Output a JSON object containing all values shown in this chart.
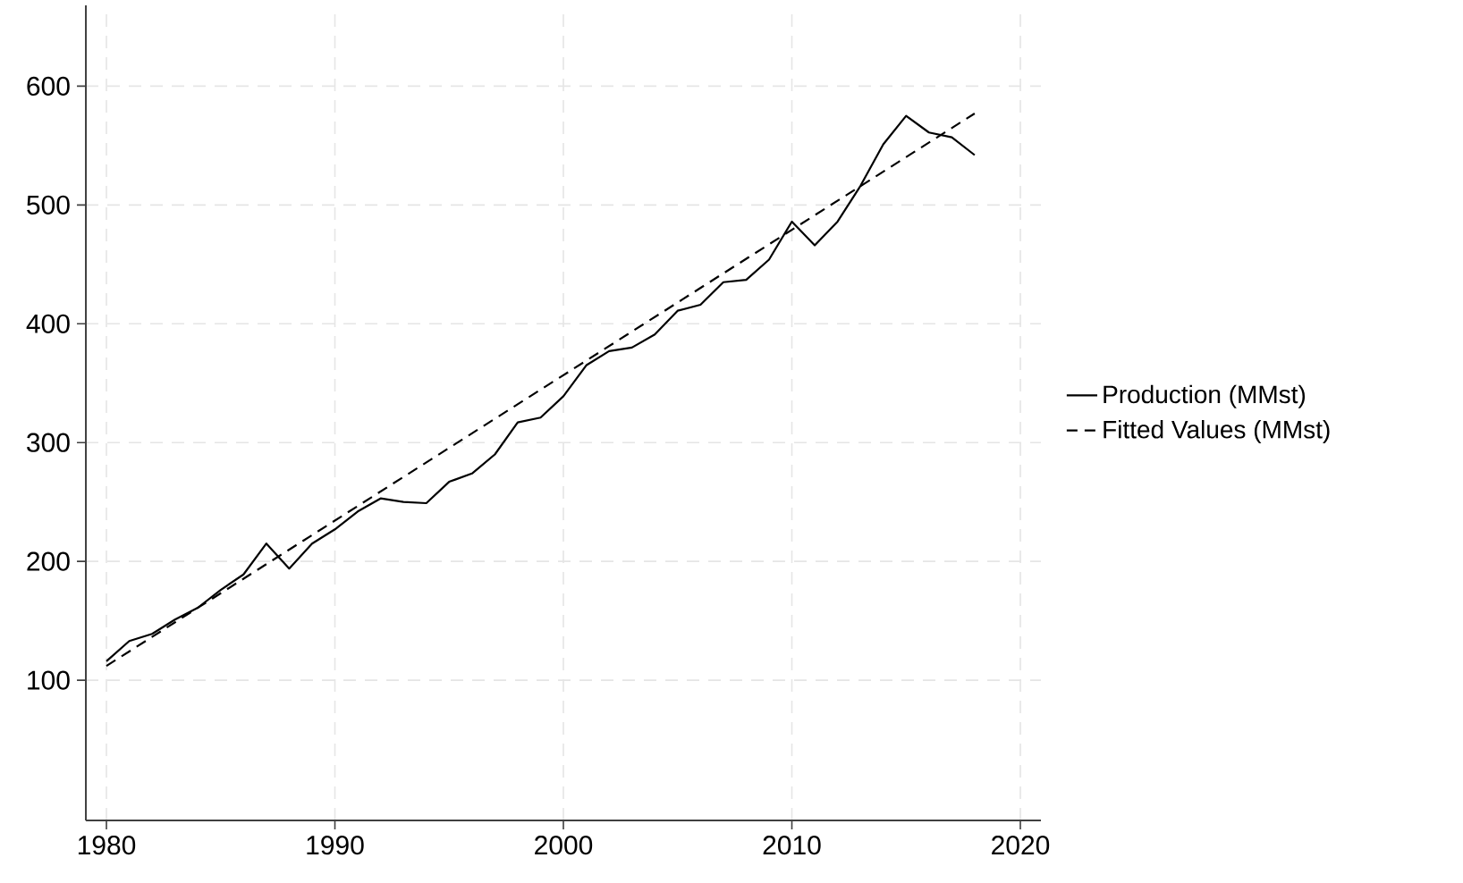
{
  "chart_data": {
    "type": "line",
    "xlim": [
      1979.1,
      2020.9
    ],
    "ylim": [
      -18,
      668
    ],
    "xticks": [
      1980,
      1990,
      2000,
      2010,
      2020
    ],
    "yticks": [
      100,
      200,
      300,
      400,
      500,
      600
    ],
    "grid": true,
    "legend": "right",
    "series": [
      {
        "name": "Production (MMst)",
        "color": "#000000",
        "line_style": "solid",
        "x": [
          1980,
          1981,
          1982,
          1983,
          1984,
          1985,
          1986,
          1987,
          1988,
          1989,
          1990,
          1991,
          1992,
          1993,
          1994,
          1995,
          1996,
          1997,
          1998,
          1999,
          2000,
          2001,
          2002,
          2003,
          2004,
          2005,
          2006,
          2007,
          2008,
          2009,
          2010,
          2011,
          2012,
          2013,
          2014,
          2015,
          2016,
          2017,
          2018
        ],
        "values": [
          116,
          133,
          139,
          151,
          161,
          176,
          189,
          215,
          194,
          215,
          227,
          242,
          253,
          250,
          249,
          267,
          274,
          290,
          317,
          321,
          339,
          365,
          377,
          380,
          391,
          411,
          416,
          435,
          437,
          454,
          486,
          466,
          486,
          516,
          551,
          575,
          561,
          557,
          542
        ]
      },
      {
        "name": "Fitted Values (MMst)",
        "color": "#000000",
        "line_style": "dashed",
        "x": [
          1980,
          2018
        ],
        "values": [
          112,
          577
        ]
      }
    ]
  }
}
